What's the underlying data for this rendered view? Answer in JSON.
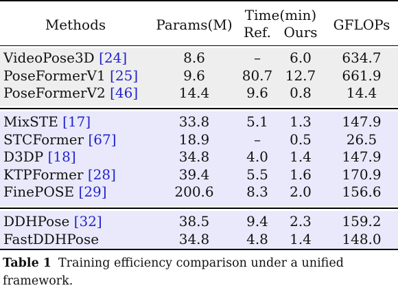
{
  "table": {
    "headers": {
      "methods": "Methods",
      "params": "Params(M)",
      "time": "Time(min)",
      "time_ref": "Ref.",
      "time_ours": "Ours",
      "gflops": "GFLOPs"
    },
    "groups": [
      {
        "band_color": "#eeeeee",
        "rows": [
          {
            "name": "VideoPose3D",
            "ref": "[24]",
            "params": "8.6",
            "time_ref": "–",
            "time_ours": "6.0",
            "gflops": "634.7"
          },
          {
            "name": "PoseFormerV1",
            "ref": "[25]",
            "params": "9.6",
            "time_ref": "80.7",
            "time_ours": "12.7",
            "gflops": "661.9"
          },
          {
            "name": "PoseFormerV2",
            "ref": "[46]",
            "params": "14.4",
            "time_ref": "9.6",
            "time_ours": "0.8",
            "gflops": "14.4"
          }
        ]
      },
      {
        "band_color": "#e9e9fb",
        "rows": [
          {
            "name": "MixSTE",
            "ref": "[17]",
            "params": "33.8",
            "time_ref": "5.1",
            "time_ours": "1.3",
            "gflops": "147.9"
          },
          {
            "name": "STCFormer",
            "ref": "[67]",
            "params": "18.9",
            "time_ref": "–",
            "time_ours": "0.5",
            "gflops": "26.5"
          },
          {
            "name": "D3DP",
            "ref": "[18]",
            "params": "34.8",
            "time_ref": "4.0",
            "time_ours": "1.4",
            "gflops": "147.9"
          },
          {
            "name": "KTPFormer",
            "ref": "[28]",
            "params": "39.4",
            "time_ref": "5.5",
            "time_ours": "1.6",
            "gflops": "170.9"
          },
          {
            "name": "FinePOSE",
            "ref": "[29]",
            "params": "200.6",
            "time_ref": "8.3",
            "time_ours": "2.0",
            "gflops": "156.6"
          }
        ]
      },
      {
        "band_color": "#e9e9fb",
        "rows": [
          {
            "name": "DDHPose",
            "ref": "[32]",
            "params": "38.5",
            "time_ref": "9.4",
            "time_ours": "2.3",
            "gflops": "159.2"
          },
          {
            "name": "FastDDHPose",
            "ref": "",
            "params": "34.8",
            "time_ref": "4.8",
            "time_ours": "1.4",
            "gflops": "148.0"
          }
        ]
      }
    ]
  },
  "caption": {
    "label": "Table 1",
    "text": "Training efficiency comparison under a unified framework."
  }
}
